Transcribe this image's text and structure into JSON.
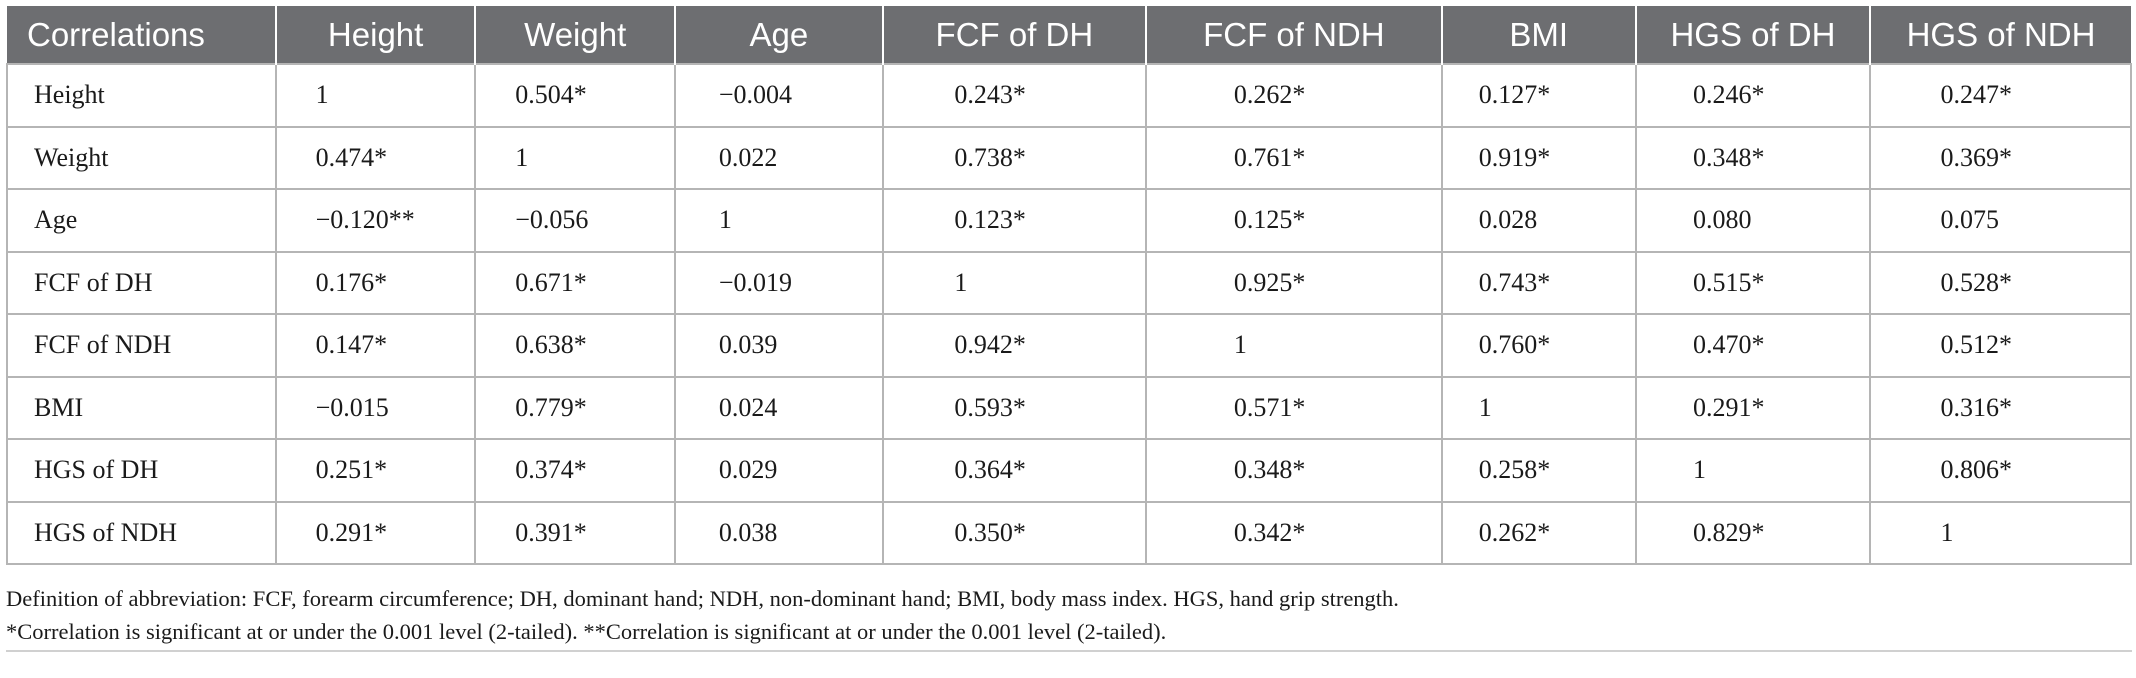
{
  "table": {
    "headers": [
      "Correlations",
      "Height",
      "Weight",
      "Age",
      "FCF of DH",
      "FCF of NDH",
      "BMI",
      "HGS of DH",
      "HGS of NDH"
    ],
    "rows": [
      {
        "label": "Height",
        "cells": [
          "1",
          "0.504*",
          "−0.004",
          "0.243*",
          "0.262*",
          "0.127*",
          "0.246*",
          "0.247*"
        ]
      },
      {
        "label": "Weight",
        "cells": [
          "0.474*",
          "1",
          "0.022",
          "0.738*",
          "0.761*",
          "0.919*",
          "0.348*",
          "0.369*"
        ]
      },
      {
        "label": "Age",
        "cells": [
          "−0.120**",
          "−0.056",
          "1",
          "0.123*",
          "0.125*",
          "0.028",
          "0.080",
          "0.075"
        ]
      },
      {
        "label": "FCF of DH",
        "cells": [
          "0.176*",
          "0.671*",
          "−0.019",
          "1",
          "0.925*",
          "0.743*",
          "0.515*",
          "0.528*"
        ]
      },
      {
        "label": "FCF of NDH",
        "cells": [
          "0.147*",
          "0.638*",
          "0.039",
          "0.942*",
          "1",
          "0.760*",
          "0.470*",
          "0.512*"
        ]
      },
      {
        "label": "BMI",
        "cells": [
          "−0.015",
          "0.779*",
          "0.024",
          "0.593*",
          "0.571*",
          "1",
          "0.291*",
          "0.316*"
        ]
      },
      {
        "label": "HGS of DH",
        "cells": [
          "0.251*",
          "0.374*",
          "0.029",
          "0.364*",
          "0.348*",
          "0.258*",
          "1",
          "0.806*"
        ]
      },
      {
        "label": "HGS of NDH",
        "cells": [
          "0.291*",
          "0.391*",
          "0.038",
          "0.350*",
          "0.342*",
          "0.262*",
          "0.829*",
          "1"
        ]
      }
    ]
  },
  "notes": {
    "definition": "Definition of abbreviation: FCF, forearm circumference; DH, dominant hand; NDH, non-dominant hand; BMI, body mass index. HGS, hand grip strength.",
    "significance": "*Correlation is significant at or under the 0.001 level (2-tailed). **Correlation is significant at or under the 0.001 level (2-tailed)."
  },
  "colors": {
    "header_background": "#6d6e71",
    "header_text": "#ffffff",
    "grid_lines": "#b5b5b5"
  }
}
